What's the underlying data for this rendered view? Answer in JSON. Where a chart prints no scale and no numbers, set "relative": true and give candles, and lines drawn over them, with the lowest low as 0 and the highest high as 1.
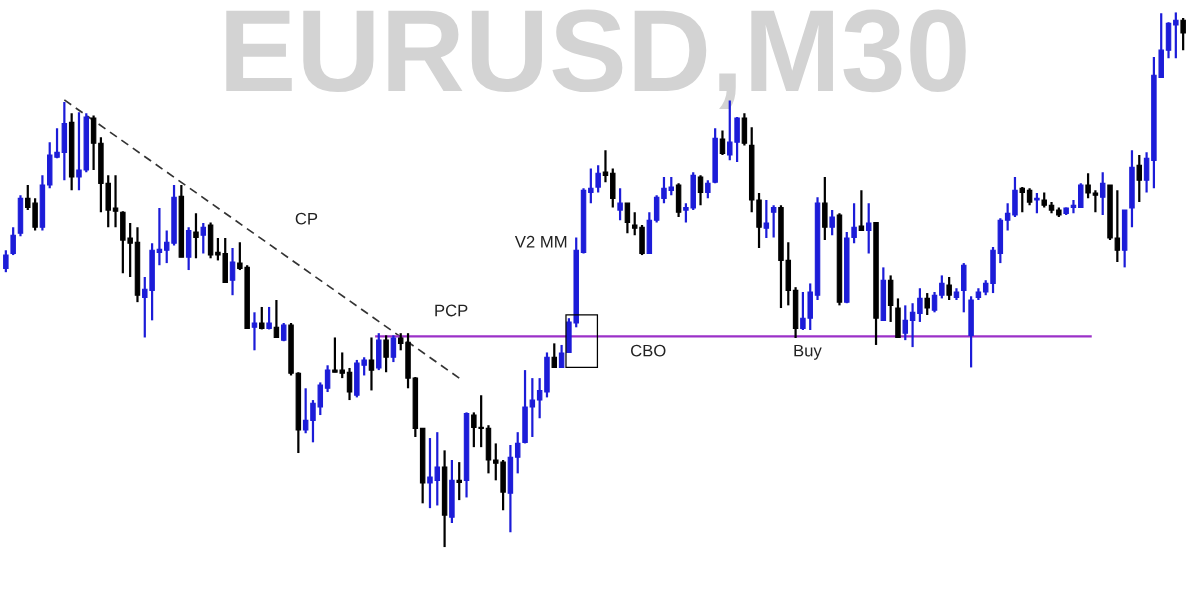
{
  "chart_data": {
    "type": "candlestick",
    "title": "EURUSD,M30",
    "relative": true,
    "categories": [
      null,
      null,
      null,
      null,
      null,
      null,
      null,
      null,
      null,
      null,
      null,
      null,
      null,
      null,
      null,
      null,
      null,
      null,
      null,
      null,
      null,
      null,
      null,
      null,
      null,
      null,
      null,
      null,
      null,
      null,
      null,
      null,
      null,
      null,
      null,
      null,
      null,
      null,
      null,
      null,
      null,
      null,
      null,
      null,
      null,
      null,
      null,
      null,
      null,
      null,
      null,
      null,
      null,
      null,
      null,
      null,
      null,
      null,
      null,
      null,
      null,
      null,
      null,
      null,
      null,
      null,
      null,
      null,
      null,
      null,
      null,
      null,
      null,
      null,
      null,
      null,
      null,
      null,
      null,
      null,
      null,
      null,
      null,
      null,
      null,
      null,
      null,
      null,
      null,
      null,
      null,
      null,
      null,
      null,
      null,
      null,
      null,
      null,
      null,
      null,
      null,
      null,
      null,
      null,
      null,
      null,
      null,
      null,
      null,
      null,
      null,
      null,
      null,
      null,
      null,
      null,
      null,
      null,
      null,
      null,
      null,
      null,
      null,
      null,
      null,
      null,
      null,
      null,
      null,
      null,
      null,
      null,
      null,
      null,
      null,
      null,
      null,
      null,
      null,
      null,
      null,
      null,
      null,
      null,
      null,
      null,
      null,
      null,
      null,
      null,
      null,
      null,
      null,
      null,
      null,
      null,
      null,
      null,
      null,
      null,
      null,
      null
    ],
    "ohlc": [
      [
        0.521,
        0.555,
        0.514,
        0.546
      ],
      [
        0.549,
        0.598,
        0.546,
        0.583
      ],
      [
        0.587,
        0.658,
        0.581,
        0.652
      ],
      [
        0.652,
        0.677,
        0.63,
        0.635
      ],
      [
        0.643,
        0.652,
        0.592,
        0.598
      ],
      [
        0.598,
        0.695,
        0.592,
        0.677
      ],
      [
        0.677,
        0.757,
        0.671,
        0.733
      ],
      [
        0.729,
        0.783,
        0.727,
        0.738
      ],
      [
        0.738,
        0.832,
        0.686,
        0.792
      ],
      [
        0.794,
        0.811,
        0.667,
        0.692
      ],
      [
        0.692,
        0.813,
        0.667,
        0.705
      ],
      [
        0.705,
        0.811,
        0.701,
        0.804
      ],
      [
        0.802,
        0.807,
        0.705,
        0.755
      ],
      [
        0.755,
        0.766,
        0.626,
        0.68
      ],
      [
        0.68,
        0.695,
        0.598,
        0.63
      ],
      [
        0.634,
        0.695,
        0.598,
        0.628
      ],
      [
        0.626,
        0.628,
        0.512,
        0.574
      ],
      [
        0.578,
        0.606,
        0.505,
        0.568
      ],
      [
        0.57,
        0.598,
        0.458,
        0.471
      ],
      [
        0.467,
        0.505,
        0.392,
        0.482
      ],
      [
        0.48,
        0.568,
        0.424,
        0.555
      ],
      [
        0.551,
        0.634,
        0.527,
        0.557
      ],
      [
        0.555,
        0.592,
        0.531,
        0.57
      ],
      [
        0.568,
        0.677,
        0.564,
        0.654
      ],
      [
        0.656,
        0.677,
        0.542,
        0.542
      ],
      [
        0.542,
        0.598,
        0.518,
        0.592
      ],
      [
        0.589,
        0.624,
        0.54,
        0.579
      ],
      [
        0.583,
        0.606,
        0.549,
        0.598
      ],
      [
        0.602,
        0.607,
        0.54,
        0.546
      ],
      [
        0.551,
        0.578,
        0.536,
        0.546
      ],
      [
        0.549,
        0.578,
        0.495,
        0.495
      ],
      [
        0.499,
        0.559,
        0.471,
        0.533
      ],
      [
        0.531,
        0.57,
        0.518,
        0.521
      ],
      [
        0.523,
        0.527,
        0.409,
        0.409
      ],
      [
        0.411,
        0.439,
        0.368,
        0.419
      ],
      [
        0.419,
        0.449,
        0.407,
        0.409
      ],
      [
        0.409,
        0.449,
        0.407,
        0.419
      ],
      [
        0.411,
        0.462,
        0.392,
        0.392
      ],
      [
        0.387,
        0.419,
        0.385,
        0.415
      ],
      [
        0.415,
        0.419,
        0.321,
        0.325
      ],
      [
        0.325,
        0.327,
        0.176,
        0.219
      ],
      [
        0.219,
        0.297,
        0.213,
        0.237
      ],
      [
        0.237,
        0.275,
        0.196,
        0.269
      ],
      [
        0.262,
        0.308,
        0.247,
        0.303
      ],
      [
        0.297,
        0.34,
        0.29,
        0.331
      ],
      [
        0.331,
        0.392,
        0.327,
        0.327
      ],
      [
        0.331,
        0.364,
        0.316,
        0.325
      ],
      [
        0.327,
        0.335,
        0.275,
        0.29
      ],
      [
        0.284,
        0.35,
        0.28,
        0.344
      ],
      [
        0.34,
        0.355,
        0.321,
        0.35
      ],
      [
        0.35,
        0.392,
        0.293,
        0.331
      ],
      [
        0.335,
        0.4,
        0.331,
        0.387
      ],
      [
        0.387,
        0.396,
        0.327,
        0.355
      ],
      [
        0.355,
        0.396,
        0.346,
        0.391
      ],
      [
        0.391,
        0.4,
        0.368,
        0.381
      ],
      [
        0.383,
        0.4,
        0.297,
        0.316
      ],
      [
        0.316,
        0.318,
        0.206,
        0.222
      ],
      [
        0.222,
        0.222,
        0.082,
        0.12
      ],
      [
        0.12,
        0.204,
        0.073,
        0.131
      ],
      [
        0.125,
        0.215,
        0.078,
        0.15
      ],
      [
        0.15,
        0.181,
        0,
        0.06
      ],
      [
        0.056,
        0.163,
        0.045,
        0.125
      ],
      [
        0.125,
        0.159,
        0.088,
        0.121
      ],
      [
        0.125,
        0.252,
        0.093,
        0.25
      ],
      [
        0.247,
        0.252,
        0.187,
        0.224
      ],
      [
        0.224,
        0.284,
        0.187,
        0.222
      ],
      [
        0.222,
        0.228,
        0.138,
        0.163
      ],
      [
        0.163,
        0.194,
        0.125,
        0.157
      ],
      [
        0.159,
        0.163,
        0.069,
        0.103
      ],
      [
        0.101,
        0.191,
        0.028,
        0.168
      ],
      [
        0.168,
        0.215,
        0.138,
        0.194
      ],
      [
        0.196,
        0.331,
        0.194,
        0.262
      ],
      [
        0.262,
        0.316,
        0.206,
        0.275
      ],
      [
        0.275,
        0.316,
        0.241,
        0.293
      ],
      [
        0.29,
        0.364,
        0.28,
        0.355
      ],
      [
        0.355,
        0.381,
        0.335,
        0.336
      ],
      [
        0.336,
        0.378,
        0.335,
        0.363
      ],
      [
        0.364,
        0.428,
        0.363,
        0.421
      ],
      [
        0.419,
        0.579,
        0.411,
        0.555
      ],
      [
        0.551,
        0.671,
        0.549,
        0.667
      ],
      [
        0.663,
        0.708,
        0.643,
        0.671
      ],
      [
        0.673,
        0.714,
        0.663,
        0.699
      ],
      [
        0.701,
        0.742,
        0.682,
        0.695
      ],
      [
        0.699,
        0.708,
        0.635,
        0.652
      ],
      [
        0.63,
        0.671,
        0.611,
        0.643
      ],
      [
        0.643,
        0.643,
        0.587,
        0.607
      ],
      [
        0.602,
        0.626,
        0.583,
        0.596
      ],
      [
        0.598,
        0.602,
        0.546,
        0.549
      ],
      [
        0.549,
        0.626,
        0.549,
        0.611
      ],
      [
        0.611,
        0.658,
        0.607,
        0.654
      ],
      [
        0.652,
        0.692,
        0.643,
        0.671
      ],
      [
        0.667,
        0.692,
        0.658,
        0.673
      ],
      [
        0.677,
        0.68,
        0.617,
        0.626
      ],
      [
        0.63,
        0.643,
        0.607,
        0.635
      ],
      [
        0.634,
        0.701,
        0.63,
        0.695
      ],
      [
        0.692,
        0.695,
        0.639,
        0.663
      ],
      [
        0.663,
        0.686,
        0.652,
        0.68
      ],
      [
        0.682,
        0.783,
        0.68,
        0.764
      ],
      [
        0.763,
        0.779,
        0.733,
        0.736
      ],
      [
        0.733,
        0.835,
        0.723,
        0.757
      ],
      [
        0.757,
        0.804,
        0.72,
        0.802
      ],
      [
        0.802,
        0.811,
        0.751,
        0.755
      ],
      [
        0.751,
        0.785,
        0.626,
        0.649
      ],
      [
        0.649,
        0.662,
        0.559,
        0.598
      ],
      [
        0.596,
        0.649,
        0.578,
        0.606
      ],
      [
        0.626,
        0.639,
        0.579,
        0.635
      ],
      [
        0.635,
        0.639,
        0.447,
        0.536
      ],
      [
        0.536,
        0.57,
        0.452,
        0.48
      ],
      [
        0.48,
        0.486,
        0.391,
        0.409
      ],
      [
        0.409,
        0.477,
        0.406,
        0.428
      ],
      [
        0.428,
        0.493,
        0.406,
        0.477
      ],
      [
        0.471,
        0.654,
        0.462,
        0.643
      ],
      [
        0.643,
        0.692,
        0.574,
        0.598
      ],
      [
        0.598,
        0.63,
        0.583,
        0.617
      ],
      [
        0.621,
        0.624,
        0.452,
        0.458
      ],
      [
        0.458,
        0.589,
        0.456,
        0.578
      ],
      [
        0.579,
        0.643,
        0.568,
        0.598
      ],
      [
        0.6,
        0.667,
        0.592,
        0.592
      ],
      [
        0.592,
        0.643,
        0.549,
        0.606
      ],
      [
        0.607,
        0.607,
        0.378,
        0.428
      ],
      [
        0.424,
        0.523,
        0.424,
        0.499
      ],
      [
        0.499,
        0.508,
        0.421,
        0.452
      ],
      [
        0.447,
        0.465,
        0.392,
        0.392
      ],
      [
        0.4,
        0.452,
        0.387,
        0.424
      ],
      [
        0.424,
        0.456,
        0.374,
        0.439
      ],
      [
        0.437,
        0.484,
        0.421,
        0.465
      ],
      [
        0.465,
        0.475,
        0.434,
        0.447
      ],
      [
        0.443,
        0.477,
        0.439,
        0.471
      ],
      [
        0.471,
        0.508,
        0.465,
        0.493
      ],
      [
        0.49,
        0.505,
        0.462,
        0.471
      ],
      [
        0.467,
        0.484,
        0.462,
        0.477
      ],
      [
        0.48,
        0.531,
        0.439,
        0.527
      ],
      [
        0.396,
        0.469,
        0.336,
        0.462
      ],
      [
        0.467,
        0.484,
        0.462,
        0.477
      ],
      [
        0.477,
        0.499,
        0.471,
        0.493
      ],
      [
        0.493,
        0.561,
        0.475,
        0.555
      ],
      [
        0.549,
        0.615,
        0.531,
        0.611
      ],
      [
        0.611,
        0.643,
        0.592,
        0.624
      ],
      [
        0.621,
        0.692,
        0.617,
        0.667
      ],
      [
        0.671,
        0.673,
        0.626,
        0.663
      ],
      [
        0.667,
        0.671,
        0.639,
        0.645
      ],
      [
        0.649,
        0.662,
        0.624,
        0.652
      ],
      [
        0.649,
        0.663,
        0.635,
        0.639
      ],
      [
        0.639,
        0.645,
        0.624,
        0.63
      ],
      [
        0.63,
        0.635,
        0.617,
        0.621
      ],
      [
        0.624,
        0.635,
        0.621,
        0.634
      ],
      [
        0.635,
        0.649,
        0.624,
        0.639
      ],
      [
        0.635,
        0.68,
        0.634,
        0.677
      ],
      [
        0.677,
        0.699,
        0.652,
        0.662
      ],
      [
        0.662,
        0.667,
        0.626,
        0.658
      ],
      [
        0.654,
        0.701,
        0.621,
        0.68
      ],
      [
        0.677,
        0.677,
        0.574,
        0.578
      ],
      [
        0.578,
        0.667,
        0.533,
        0.555
      ],
      [
        0.555,
        0.63,
        0.523,
        0.63
      ],
      [
        0.634,
        0.742,
        0.598,
        0.71
      ],
      [
        0.714,
        0.733,
        0.645,
        0.686
      ],
      [
        0.686,
        0.738,
        0.663,
        0.727
      ],
      [
        0.723,
        0.916,
        0.671,
        0.882
      ],
      [
        0.878,
        0.998,
        0.877,
        0.929
      ],
      [
        0.929,
        0.981,
        0.914,
        0.979
      ],
      [
        0.976,
        1,
        0.914,
        0.985
      ],
      [
        0.985,
        0.989,
        0.929,
        0.961
      ]
    ],
    "colors": [
      "#1c1cd8",
      "#1c1cd8",
      "#1c1cd8",
      "#000000",
      "#000000",
      "#1c1cd8",
      "#1c1cd8",
      "#1c1cd8",
      "#1c1cd8",
      "#000000",
      "#1c1cd8",
      "#1c1cd8",
      "#000000",
      "#000000",
      "#000000",
      "#000000",
      "#000000",
      "#000000",
      "#000000",
      "#1c1cd8",
      "#1c1cd8",
      "#1c1cd8",
      "#1c1cd8",
      "#1c1cd8",
      "#000000",
      "#1c1cd8",
      "#000000",
      "#1c1cd8",
      "#000000",
      "#000000",
      "#000000",
      "#1c1cd8",
      "#000000",
      "#000000",
      "#1c1cd8",
      "#000000",
      "#1c1cd8",
      "#000000",
      "#1c1cd8",
      "#000000",
      "#000000",
      "#1c1cd8",
      "#1c1cd8",
      "#1c1cd8",
      "#1c1cd8",
      "#000000",
      "#000000",
      "#000000",
      "#1c1cd8",
      "#1c1cd8",
      "#000000",
      "#1c1cd8",
      "#000000",
      "#1c1cd8",
      "#000000",
      "#000000",
      "#000000",
      "#000000",
      "#1c1cd8",
      "#1c1cd8",
      "#000000",
      "#1c1cd8",
      "#000000",
      "#1c1cd8",
      "#000000",
      "#000000",
      "#000000",
      "#000000",
      "#000000",
      "#1c1cd8",
      "#1c1cd8",
      "#1c1cd8",
      "#1c1cd8",
      "#1c1cd8",
      "#1c1cd8",
      "#000000",
      "#1c1cd8",
      "#1c1cd8",
      "#1c1cd8",
      "#1c1cd8",
      "#1c1cd8",
      "#1c1cd8",
      "#000000",
      "#000000",
      "#1c1cd8",
      "#000000",
      "#000000",
      "#000000",
      "#1c1cd8",
      "#1c1cd8",
      "#1c1cd8",
      "#1c1cd8",
      "#000000",
      "#1c1cd8",
      "#1c1cd8",
      "#000000",
      "#1c1cd8",
      "#1c1cd8",
      "#000000",
      "#1c1cd8",
      "#1c1cd8",
      "#000000",
      "#000000",
      "#000000",
      "#1c1cd8",
      "#1c1cd8",
      "#000000",
      "#000000",
      "#000000",
      "#1c1cd8",
      "#1c1cd8",
      "#1c1cd8",
      "#000000",
      "#1c1cd8",
      "#000000",
      "#1c1cd8",
      "#1c1cd8",
      "#000000",
      "#1c1cd8",
      "#000000",
      "#1c1cd8",
      "#000000",
      "#000000",
      "#1c1cd8",
      "#1c1cd8",
      "#1c1cd8",
      "#000000",
      "#1c1cd8",
      "#1c1cd8",
      "#000000",
      "#1c1cd8",
      "#1c1cd8",
      "#1c1cd8",
      "#1c1cd8",
      "#1c1cd8",
      "#1c1cd8",
      "#1c1cd8",
      "#1c1cd8",
      "#1c1cd8",
      "#000000",
      "#000000",
      "#1c1cd8",
      "#000000",
      "#000000",
      "#000000",
      "#1c1cd8",
      "#1c1cd8",
      "#1c1cd8",
      "#000000",
      "#000000",
      "#1c1cd8",
      "#000000",
      "#000000",
      "#1c1cd8",
      "#1c1cd8",
      "#000000",
      "#1c1cd8",
      "#1c1cd8",
      "#1c1cd8",
      "#1c1cd8",
      "#1c1cd8",
      "#000000"
    ],
    "series": [
      {
        "type": "line",
        "line_style": "dashed",
        "color": "#333333",
        "values": [
          null,
          null,
          null,
          null,
          null,
          null,
          null,
          null,
          0.836,
          null,
          null,
          null,
          null,
          null,
          null,
          null,
          null,
          null,
          null,
          null,
          null,
          null,
          null,
          null,
          null,
          null,
          null,
          null,
          null,
          null,
          null,
          null,
          null,
          null,
          null,
          null,
          null,
          null,
          null,
          null,
          null,
          null,
          null,
          null,
          null,
          null,
          null,
          null,
          null,
          null,
          null,
          null,
          null,
          null,
          null,
          null,
          null,
          null,
          null,
          null,
          null,
          null,
          0.316,
          null,
          null,
          null,
          null,
          null,
          null,
          null,
          null,
          null,
          null,
          null,
          null,
          null,
          null,
          null,
          null,
          null,
          null,
          null,
          null,
          null,
          null,
          null,
          null,
          null,
          null,
          null,
          null,
          null,
          null,
          null,
          null,
          null,
          null,
          null,
          null,
          null,
          null,
          null,
          null,
          null,
          null,
          null,
          null,
          null,
          null,
          null,
          null,
          null,
          null,
          null,
          null,
          null,
          null,
          null,
          null,
          null,
          null,
          null,
          null,
          null,
          null,
          null,
          null,
          null,
          null,
          null,
          null,
          null,
          null,
          null,
          null,
          null,
          null,
          null,
          null,
          null,
          null,
          null,
          null,
          null,
          null,
          null,
          null,
          null,
          null,
          null,
          null,
          null,
          null,
          null,
          null,
          null,
          null,
          null,
          null,
          null,
          null,
          null
        ]
      }
    ],
    "ref_lines": [
      {
        "axis": "y",
        "value": 0.394,
        "color": "#9b30c8"
      }
    ],
    "annotations": [
      "CP",
      "V2 MM",
      "PCP",
      "CBO",
      "Buy"
    ]
  }
}
